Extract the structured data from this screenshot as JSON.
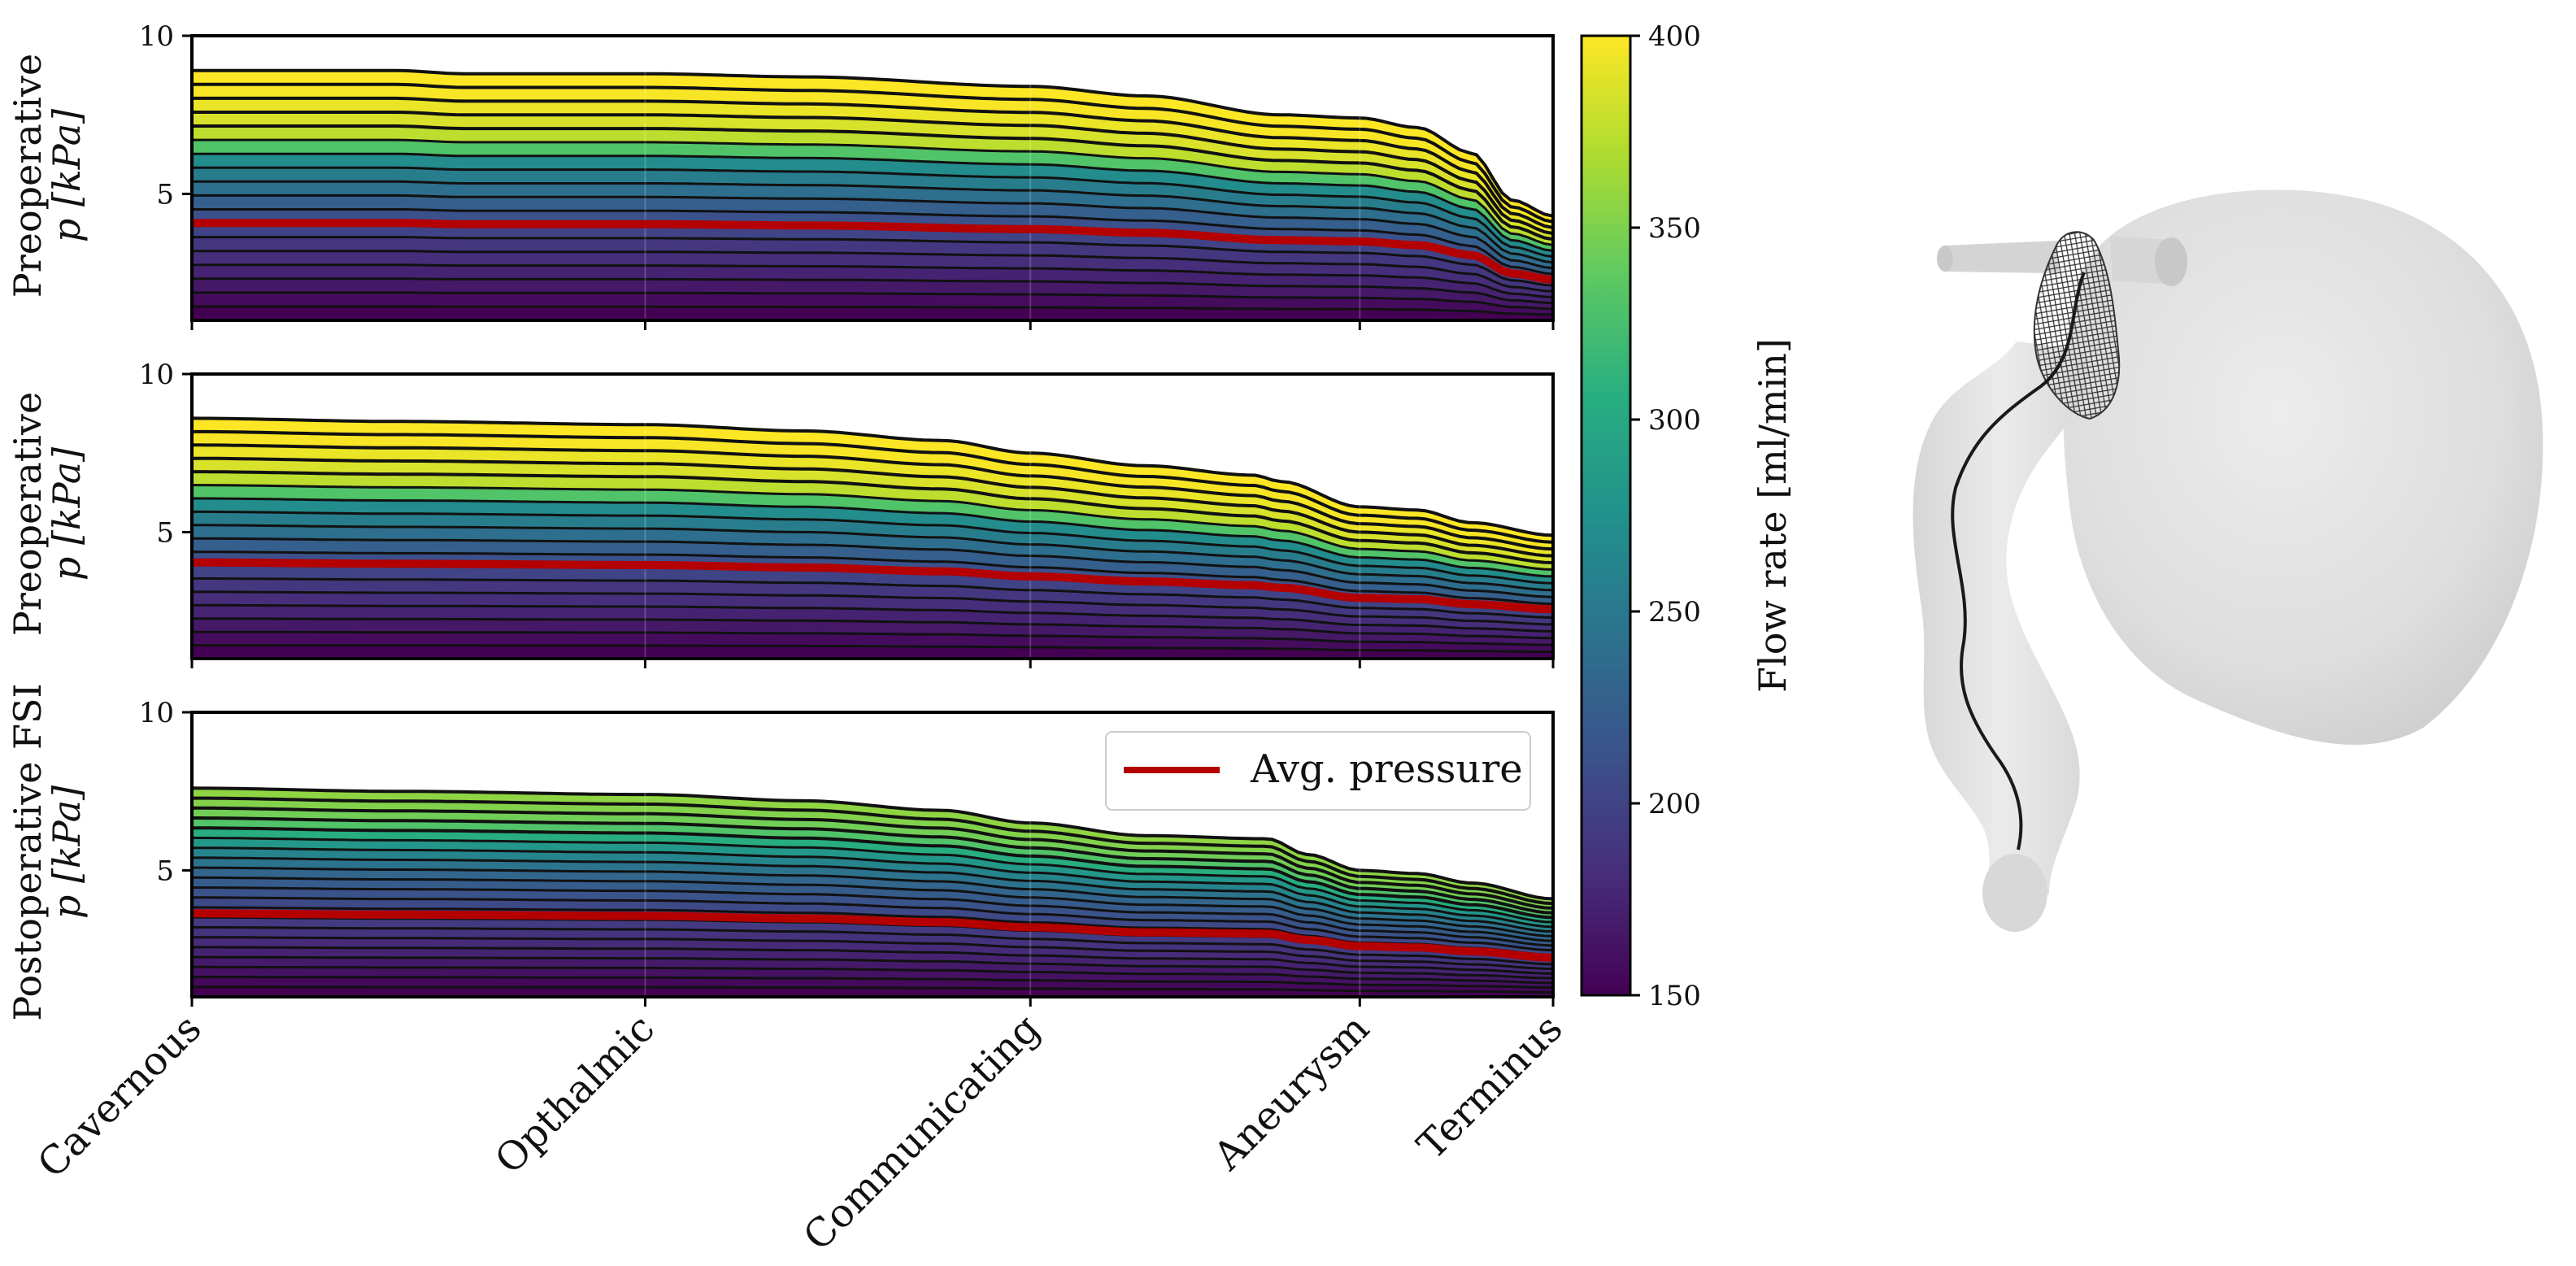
{
  "chart_data": {
    "type": "area",
    "description_units": "pressure p in kPa vs position along vessel centerline",
    "x_categories": [
      "Cavernous",
      "Opthalmic",
      "Communicating",
      "Aneurysm",
      "Terminus"
    ],
    "x_positions": [
      0,
      0.333,
      0.616,
      0.858,
      1
    ],
    "ylim": [
      1,
      10
    ],
    "yticks": [
      "5",
      "10"
    ],
    "panels": [
      {
        "ylabel_line1": "Preoperative",
        "ylabel_line2": "p [kPa]",
        "top_profile": [
          [
            0,
            8.9
          ],
          [
            0.15,
            8.9
          ],
          [
            0.2,
            8.8
          ],
          [
            0.333,
            8.8
          ],
          [
            0.45,
            8.7
          ],
          [
            0.616,
            8.4
          ],
          [
            0.7,
            8.1
          ],
          [
            0.8,
            7.5
          ],
          [
            0.858,
            7.4
          ],
          [
            0.9,
            7.1
          ],
          [
            0.94,
            6.3
          ],
          [
            0.97,
            4.8
          ],
          [
            1,
            4.3
          ]
        ],
        "flow_levels": [
          150,
          158,
          166,
          174,
          182,
          190,
          200,
          212,
          225,
          240,
          255,
          270,
          330,
          375,
          386,
          393,
          398,
          400
        ],
        "avg_pressure_fraction": 0.39
      },
      {
        "ylabel_line1": "Preoperative",
        "ylabel_line2": "p [kPa]",
        "top_profile": [
          [
            0,
            8.6
          ],
          [
            0.15,
            8.5
          ],
          [
            0.333,
            8.4
          ],
          [
            0.45,
            8.2
          ],
          [
            0.55,
            7.9
          ],
          [
            0.616,
            7.5
          ],
          [
            0.7,
            7.1
          ],
          [
            0.78,
            6.8
          ],
          [
            0.8,
            6.6
          ],
          [
            0.858,
            5.8
          ],
          [
            0.9,
            5.7
          ],
          [
            0.94,
            5.3
          ],
          [
            1,
            4.9
          ]
        ],
        "flow_levels": [
          150,
          158,
          166,
          174,
          182,
          190,
          200,
          212,
          225,
          240,
          255,
          270,
          330,
          375,
          386,
          393,
          398,
          400
        ],
        "avg_pressure_fraction": 0.4
      },
      {
        "ylabel_line1": "Postoperative FSI",
        "ylabel_line2": "p [kPa]",
        "top_profile": [
          [
            0,
            7.6
          ],
          [
            0.15,
            7.5
          ],
          [
            0.333,
            7.4
          ],
          [
            0.45,
            7.2
          ],
          [
            0.55,
            6.9
          ],
          [
            0.616,
            6.5
          ],
          [
            0.7,
            6.1
          ],
          [
            0.79,
            6.0
          ],
          [
            0.82,
            5.5
          ],
          [
            0.858,
            5.0
          ],
          [
            0.9,
            4.9
          ],
          [
            0.94,
            4.6
          ],
          [
            1,
            4.1
          ]
        ],
        "flow_levels": [
          150,
          156,
          162,
          168,
          174,
          180,
          186,
          192,
          198,
          205,
          213,
          222,
          232,
          245,
          262,
          282,
          305,
          330,
          345,
          352,
          357
        ],
        "avg_pressure_fraction": 0.4
      }
    ],
    "colorbar": {
      "label": "Flow rate [ml/min]",
      "min": 150,
      "max": 400,
      "ticks": [
        "150",
        "200",
        "250",
        "300",
        "350",
        "400"
      ],
      "colormap": "viridis"
    },
    "legend": {
      "label": "Avg. pressure",
      "color": "#b00000",
      "position": "upper-right of bottom panel"
    }
  },
  "colors": {
    "axis": "#000000",
    "avg_line": "#b40000",
    "model_fill": "#dcdcdc"
  },
  "icons": [
    "vessel-model-3d-render"
  ]
}
